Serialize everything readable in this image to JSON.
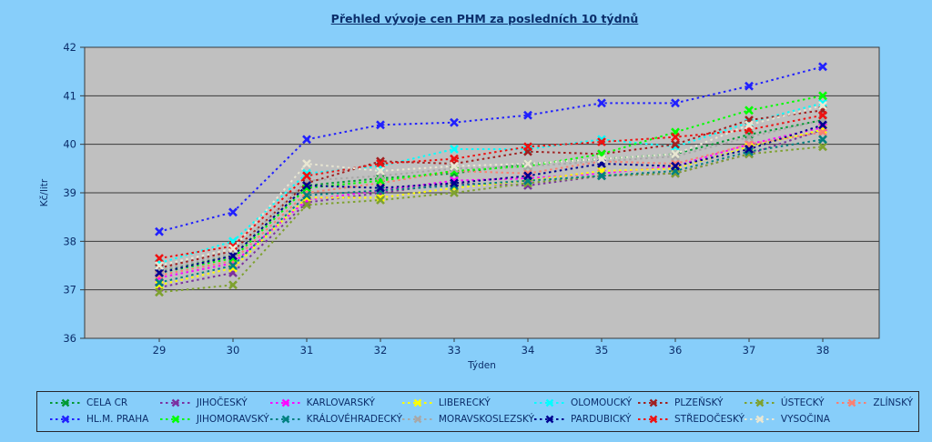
{
  "page": {
    "background_color": "#87CEFA",
    "text_color": "#0B2E6B"
  },
  "chart_data": {
    "type": "line",
    "title": "Přehled vývoje cen PHM za posledních 10 týdnů",
    "xlabel": "Týden",
    "ylabel": "Kč/litr",
    "x": [
      29,
      30,
      31,
      32,
      33,
      34,
      35,
      36,
      37,
      38
    ],
    "ylim": [
      36,
      42
    ],
    "ytick_step": 1,
    "grid": true,
    "plot_background": "#C0C0C0",
    "grid_color": "#3a3a3a",
    "line_style": "dashed",
    "marker": "x",
    "legend_position": "bottom",
    "series": [
      {
        "name": "CELA CR",
        "color": "#009933",
        "values": [
          37.4,
          37.7,
          39.15,
          39.3,
          39.4,
          39.6,
          39.7,
          39.8,
          40.2,
          40.5
        ]
      },
      {
        "name": "JIHOČESKÝ",
        "color": "#7B30A0",
        "values": [
          37.05,
          37.35,
          38.8,
          39.0,
          39.2,
          39.15,
          39.35,
          39.4,
          39.8,
          40.3
        ]
      },
      {
        "name": "KARLOVARSKÝ",
        "color": "#FF00FF",
        "values": [
          37.25,
          37.55,
          38.85,
          39.05,
          39.25,
          39.3,
          39.4,
          39.55,
          40.0,
          40.35
        ]
      },
      {
        "name": "LIBERECKÝ",
        "color": "#FFFF00",
        "values": [
          37.1,
          37.45,
          38.9,
          38.9,
          39.1,
          39.25,
          39.45,
          39.5,
          39.95,
          40.3
        ]
      },
      {
        "name": "OLOMOUCKÝ",
        "color": "#00FFFF",
        "values": [
          37.55,
          38.0,
          39.4,
          39.55,
          39.9,
          39.9,
          40.1,
          39.95,
          40.45,
          40.85
        ]
      },
      {
        "name": "PLZEŇSKÝ",
        "color": "#A02020",
        "values": [
          37.45,
          37.8,
          39.2,
          39.65,
          39.6,
          39.85,
          39.8,
          40.0,
          40.5,
          40.7
        ]
      },
      {
        "name": "ÚSTECKÝ",
        "color": "#7EA12F",
        "values": [
          36.95,
          37.1,
          38.75,
          38.85,
          39.0,
          39.2,
          39.35,
          39.4,
          39.8,
          39.95
        ]
      },
      {
        "name": "ZLÍNSKÝ",
        "color": "#FA8072",
        "values": [
          37.3,
          37.6,
          39.0,
          39.2,
          39.45,
          39.4,
          39.65,
          39.6,
          40.0,
          40.25
        ]
      },
      {
        "name": "HL.M. PRAHA",
        "color": "#2020FF",
        "values": [
          38.2,
          38.6,
          40.1,
          40.4,
          40.45,
          40.6,
          40.85,
          40.85,
          41.2,
          41.6
        ]
      },
      {
        "name": "JIHOMORAVSKÝ",
        "color": "#00FF00",
        "values": [
          37.35,
          37.65,
          39.1,
          39.25,
          39.45,
          39.55,
          39.8,
          40.25,
          40.7,
          41.0
        ]
      },
      {
        "name": "KRÁLOVÉHRADECKÝ",
        "color": "#008080",
        "values": [
          37.15,
          37.5,
          38.95,
          39.05,
          39.15,
          39.25,
          39.35,
          39.45,
          39.85,
          40.1
        ]
      },
      {
        "name": "MORAVSKOSLEZSKÝ",
        "color": "#A8A8A8",
        "values": [
          37.4,
          37.75,
          39.25,
          39.35,
          39.5,
          39.55,
          39.65,
          39.75,
          40.15,
          40.5
        ]
      },
      {
        "name": "PARDUBICKÝ",
        "color": "#000090",
        "values": [
          37.35,
          37.7,
          39.15,
          39.1,
          39.2,
          39.35,
          39.6,
          39.55,
          39.9,
          40.4
        ]
      },
      {
        "name": "STŘEDOČESKÝ",
        "color": "#EE1111",
        "values": [
          37.65,
          37.9,
          39.35,
          39.6,
          39.7,
          39.95,
          40.05,
          40.15,
          40.3,
          40.6
        ]
      },
      {
        "name": "VYSOČINA",
        "color": "#E9E7D2",
        "values": [
          37.5,
          37.85,
          39.6,
          39.45,
          39.55,
          39.6,
          39.7,
          39.8,
          40.4,
          40.8
        ]
      }
    ]
  }
}
